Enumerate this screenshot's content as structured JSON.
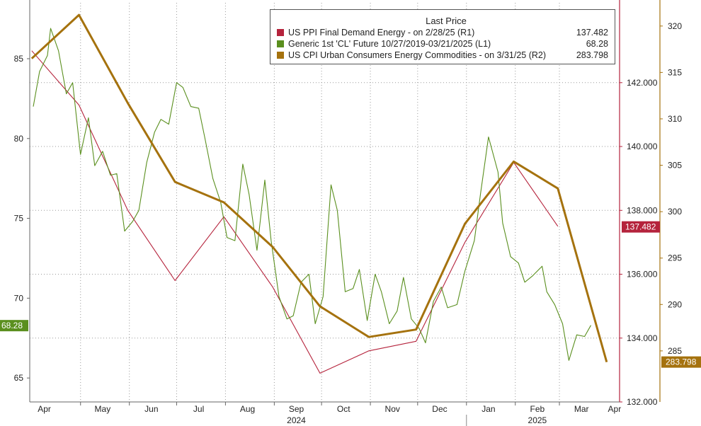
{
  "legend": {
    "title": "Last Price",
    "items": [
      {
        "label": "US PPI Final Demand Energy -  on 2/28/25  (R1)",
        "value": "137.482",
        "color": "#b5233c"
      },
      {
        "label": "Generic 1st 'CL' Future 10/27/2019-03/21/2025  (L1)",
        "value": "68.28",
        "color": "#5a8f1e"
      },
      {
        "label": "US CPI Urban Consumers Energy Commodities -  on 3/31/25  (R2)",
        "value": "283.798",
        "color": "#a5720e"
      }
    ]
  },
  "chart_data": {
    "type": "line",
    "x_month_labels": [
      "Apr",
      "May",
      "Jun",
      "Jul",
      "Aug",
      "Sep",
      "Oct",
      "Nov",
      "Dec",
      "Jan",
      "Feb",
      "Mar",
      "Apr"
    ],
    "x_year_labels": [
      "2024",
      "2025"
    ],
    "axes": {
      "left": {
        "ticks": [
          "65",
          "70",
          "75",
          "80",
          "85"
        ],
        "range": [
          63.5,
          88.5
        ]
      },
      "right1": {
        "ticks": [
          "132.000",
          "134.000",
          "136.000",
          "138.000",
          "140.000",
          "142.000"
        ],
        "range": [
          132.0,
          144.5
        ]
      },
      "right2": {
        "ticks": [
          "285",
          "290",
          "295",
          "300",
          "305",
          "310",
          "315",
          "320"
        ],
        "range": [
          279.5,
          322.5
        ]
      }
    },
    "last_value_tags": {
      "left": "68.28",
      "right1": "137.482",
      "right2": "283.798"
    },
    "grid": true,
    "legend_placement": "top-right",
    "series": [
      {
        "name": "US PPI Final Demand Energy",
        "axis": "right1",
        "color": "#b5233c",
        "x": [
          "2024-03-31",
          "2024-04-30",
          "2024-05-31",
          "2024-06-30",
          "2024-07-31",
          "2024-08-31",
          "2024-09-30",
          "2024-10-31",
          "2024-11-30",
          "2024-12-31",
          "2025-01-31",
          "2025-02-28"
        ],
        "y": [
          143.0,
          141.3,
          138.0,
          135.8,
          137.8,
          135.6,
          132.9,
          133.6,
          133.9,
          137.0,
          139.5,
          137.5
        ]
      },
      {
        "name": "Generic 1st 'CL' Future",
        "axis": "left",
        "color": "#5a8f1e",
        "x": [
          "2024-04-01",
          "2024-04-05",
          "2024-04-10",
          "2024-04-12",
          "2024-04-17",
          "2024-04-22",
          "2024-04-26",
          "2024-05-01",
          "2024-05-06",
          "2024-05-10",
          "2024-05-15",
          "2024-05-20",
          "2024-05-24",
          "2024-05-29",
          "2024-06-03",
          "2024-06-07",
          "2024-06-12",
          "2024-06-17",
          "2024-06-21",
          "2024-06-26",
          "2024-07-01",
          "2024-07-05",
          "2024-07-10",
          "2024-07-15",
          "2024-07-19",
          "2024-07-24",
          "2024-07-29",
          "2024-08-02",
          "2024-08-07",
          "2024-08-12",
          "2024-08-16",
          "2024-08-21",
          "2024-08-26",
          "2024-08-30",
          "2024-09-04",
          "2024-09-09",
          "2024-09-13",
          "2024-09-18",
          "2024-09-23",
          "2024-09-27",
          "2024-10-02",
          "2024-10-07",
          "2024-10-11",
          "2024-10-16",
          "2024-10-21",
          "2024-10-25",
          "2024-10-30",
          "2024-11-04",
          "2024-11-08",
          "2024-11-13",
          "2024-11-18",
          "2024-11-22",
          "2024-11-27",
          "2024-12-02",
          "2024-12-06",
          "2024-12-11",
          "2024-12-16",
          "2024-12-20",
          "2024-12-26",
          "2024-12-31",
          "2025-01-06",
          "2025-01-10",
          "2025-01-15",
          "2025-01-21",
          "2025-01-24",
          "2025-01-29",
          "2025-02-03",
          "2025-02-07",
          "2025-02-12",
          "2025-02-18",
          "2025-02-21",
          "2025-02-26",
          "2025-03-03",
          "2025-03-07",
          "2025-03-12",
          "2025-03-17",
          "2025-03-21"
        ],
        "y": [
          82.0,
          84.2,
          85.2,
          86.9,
          85.5,
          82.8,
          83.5,
          79.0,
          81.3,
          78.3,
          79.2,
          77.7,
          77.8,
          74.2,
          74.8,
          75.5,
          78.5,
          80.4,
          81.2,
          80.9,
          83.5,
          83.2,
          82.0,
          81.9,
          80.0,
          77.5,
          76.0,
          73.8,
          73.6,
          78.4,
          76.5,
          73.0,
          77.4,
          73.6,
          70.1,
          68.7,
          68.9,
          71.0,
          71.5,
          68.4,
          70.1,
          77.1,
          75.5,
          70.4,
          70.6,
          71.8,
          68.6,
          71.5,
          70.4,
          68.4,
          69.2,
          71.3,
          68.7,
          68.1,
          67.2,
          69.8,
          70.7,
          69.4,
          69.6,
          71.7,
          73.6,
          76.6,
          80.1,
          77.9,
          74.7,
          72.6,
          72.2,
          71.0,
          71.4,
          72.0,
          70.4,
          69.6,
          68.4,
          66.1,
          67.7,
          67.6,
          68.3
        ]
      },
      {
        "name": "US CPI Urban Consumers Energy Commodities",
        "axis": "right2",
        "color": "#a5720e",
        "x": [
          "2024-03-31",
          "2024-04-30",
          "2024-05-31",
          "2024-06-30",
          "2024-07-31",
          "2024-08-31",
          "2024-09-30",
          "2024-10-31",
          "2024-11-30",
          "2024-12-31",
          "2025-01-31",
          "2025-02-28",
          "2025-03-31"
        ],
        "y": [
          316.5,
          321.2,
          311.7,
          303.2,
          301.0,
          296.2,
          289.8,
          286.5,
          287.3,
          298.7,
          305.4,
          302.5,
          283.8
        ]
      }
    ]
  }
}
